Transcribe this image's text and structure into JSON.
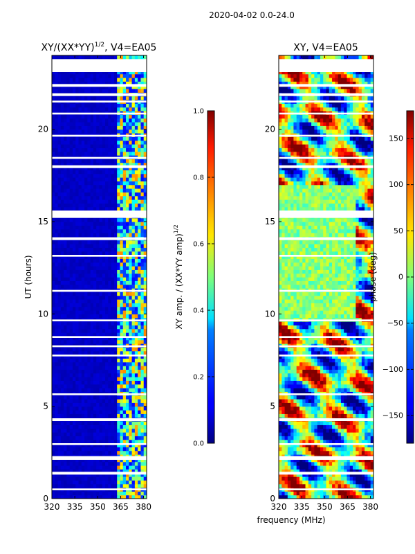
{
  "suptitle": "2020-04-02 0.0-24.0",
  "chart_data": [
    {
      "type": "heatmap",
      "title": "XY/(XX*YY)^1/2, V4=EA05",
      "title_main": "XY/(XX*YY)",
      "title_sup": "1/2",
      "title_suffix": ", V4=EA05",
      "xlabel": "",
      "ylabel": "UT (hours)",
      "xlim": [
        320,
        382
      ],
      "ylim": [
        0,
        24
      ],
      "xticks": [
        320,
        335,
        350,
        365,
        380
      ],
      "yticks": [
        0,
        5,
        10,
        15,
        20
      ],
      "colorbar": {
        "label": "XY amp. / (XX*YY amp)^1/2",
        "label_main": "XY amp. / (XX*YY amp)",
        "label_sup": "1/2",
        "range": [
          0.0,
          1.0
        ],
        "ticks": [
          "0.0",
          "0.2",
          "0.4",
          "0.6",
          "0.8",
          "1.0"
        ],
        "colormap": "jet"
      },
      "description_values": {
        "background_level": 0.05,
        "band_high_level_range": [
          0.3,
          0.75
        ],
        "band_start_mhz": 362.5,
        "flagged_hours": [
          [
            23.1,
            23.8
          ],
          [
            22.3,
            22.45
          ],
          [
            21.8,
            21.95
          ],
          [
            21.45,
            21.55
          ],
          [
            20.8,
            20.9
          ],
          [
            19.6,
            19.7
          ],
          [
            18.4,
            18.5
          ],
          [
            17.9,
            18.05
          ],
          [
            15.2,
            15.6
          ],
          [
            14.0,
            14.15
          ],
          [
            13.1,
            13.2
          ],
          [
            11.2,
            11.3
          ],
          [
            9.6,
            9.7
          ],
          [
            8.7,
            8.8
          ],
          [
            8.2,
            8.3
          ],
          [
            7.7,
            7.8
          ],
          [
            5.6,
            5.7
          ],
          [
            4.2,
            4.35
          ],
          [
            2.9,
            3.0
          ],
          [
            2.1,
            2.3
          ],
          [
            1.3,
            1.45
          ],
          [
            0.45,
            0.55
          ]
        ]
      }
    },
    {
      "type": "heatmap",
      "title": "XY, V4=EA05",
      "xlabel": "frequency (MHz)",
      "ylabel": "",
      "xlim": [
        320,
        382
      ],
      "ylim": [
        0,
        24
      ],
      "xticks": [
        320,
        335,
        350,
        365,
        380
      ],
      "yticks": [
        0,
        5,
        10,
        15,
        20
      ],
      "colorbar": {
        "label": "phase (deg)",
        "range": [
          -180,
          180
        ],
        "ticks": [
          "−150",
          "−100",
          "−50",
          "0",
          "50",
          "100",
          "150"
        ],
        "tick_values": [
          -150,
          -100,
          -50,
          0,
          50,
          100,
          150
        ],
        "colormap": "jet"
      },
      "description_values": {
        "phase_range_deg": [
          -180,
          180
        ],
        "flagged_hours": [
          [
            23.1,
            23.8
          ],
          [
            22.3,
            22.45
          ],
          [
            21.8,
            21.95
          ],
          [
            21.45,
            21.55
          ],
          [
            20.8,
            20.9
          ],
          [
            19.6,
            19.7
          ],
          [
            18.4,
            18.5
          ],
          [
            17.9,
            18.05
          ],
          [
            15.2,
            15.6
          ],
          [
            14.0,
            14.15
          ],
          [
            13.1,
            13.2
          ],
          [
            11.2,
            11.3
          ],
          [
            9.6,
            9.7
          ],
          [
            8.7,
            8.8
          ],
          [
            8.2,
            8.3
          ],
          [
            7.7,
            7.8
          ],
          [
            5.6,
            5.7
          ],
          [
            4.2,
            4.35
          ],
          [
            2.9,
            3.0
          ],
          [
            2.1,
            2.3
          ],
          [
            1.3,
            1.45
          ],
          [
            0.45,
            0.55
          ]
        ]
      }
    }
  ]
}
